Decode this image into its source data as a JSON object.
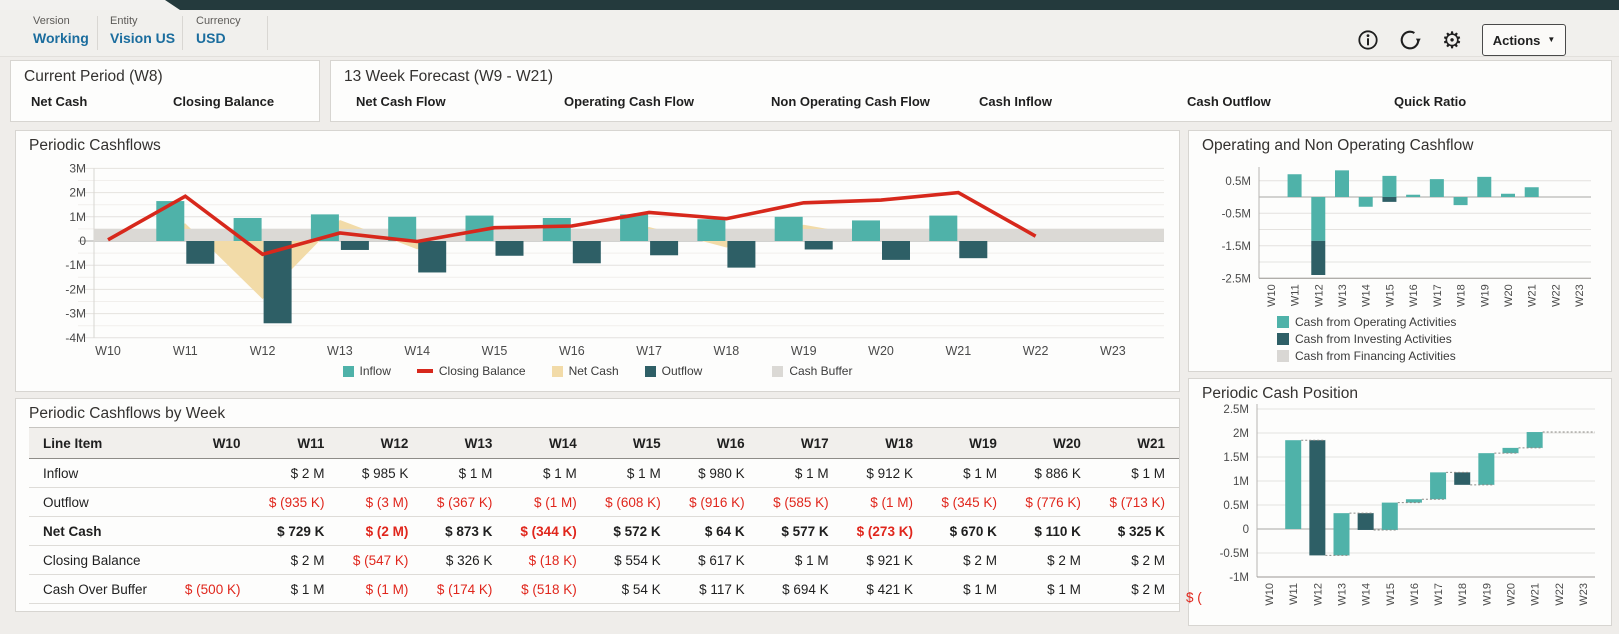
{
  "pov": {
    "items": [
      {
        "label": "Version",
        "value": "Working"
      },
      {
        "label": "Entity",
        "value": "Vision US"
      },
      {
        "label": "Currency",
        "value": "USD"
      }
    ]
  },
  "toolbar": {
    "icons": [
      "info-icon",
      "refresh-icon",
      "gear-icon"
    ],
    "actions_label": "Actions"
  },
  "summary": {
    "current_period": {
      "title": "Current Period (W8)",
      "metrics": [
        "Net Cash",
        "Closing Balance"
      ]
    },
    "forecast": {
      "title": "13 Week Forecast (W9 - W21)",
      "metrics": [
        "Net Cash Flow",
        "Operating Cash Flow",
        "Non Operating Cash Flow",
        "Cash Inflow",
        "Cash Outflow",
        "Quick Ratio"
      ]
    }
  },
  "colors": {
    "pov_link": "#1B6D9E",
    "negative_text": "#E0261C",
    "inflow_teal": "#4FB2A9",
    "outflow_dark_teal": "#2E5F66",
    "closing_balance_red": "#D7281C",
    "net_cash_tan": "#F2DBA8",
    "cash_buffer_gray": "#DBD9D5",
    "top_strip": "#243A3D"
  },
  "chart_data": [
    {
      "id": "periodic_cashflows",
      "type": "combo",
      "title": "Periodic Cashflows",
      "categories": [
        "W10",
        "W11",
        "W12",
        "W13",
        "W14",
        "W15",
        "W16",
        "W17",
        "W18",
        "W19",
        "W20",
        "W21",
        "W22",
        "W23"
      ],
      "ylim": [
        -4,
        3
      ],
      "y_ticks": [
        {
          "v": 3,
          "label": "3M"
        },
        {
          "v": 2,
          "label": "2M"
        },
        {
          "v": 1,
          "label": "1M"
        },
        {
          "v": 0,
          "label": "0"
        },
        {
          "v": -1,
          "label": "-1M"
        },
        {
          "v": -2,
          "label": "-2M"
        },
        {
          "v": -3,
          "label": "-3M"
        },
        {
          "v": -4,
          "label": "-4M"
        }
      ],
      "series": [
        {
          "name": "Net Cash",
          "type": "area",
          "color": "#F2DBA8",
          "values": [
            0,
            0.73,
            -2.4,
            0.87,
            -0.34,
            0.57,
            0.06,
            0.58,
            -0.27,
            0.67,
            0.11,
            0.33,
            null,
            null
          ]
        },
        {
          "name": "Cash Buffer",
          "type": "band",
          "color": "#DBD9D5",
          "low": 0,
          "high": 0.5
        },
        {
          "name": "Inflow",
          "type": "bar",
          "color": "#4FB2A9",
          "values": [
            null,
            1.65,
            0.95,
            1.1,
            1.0,
            1.05,
            0.95,
            1.1,
            0.9,
            1.0,
            0.85,
            1.05,
            null,
            null
          ]
        },
        {
          "name": "Outflow",
          "type": "bar",
          "color": "#2E5F66",
          "values": [
            null,
            -0.94,
            -3.4,
            -0.37,
            -1.3,
            -0.61,
            -0.92,
            -0.59,
            -1.1,
            -0.35,
            -0.78,
            -0.71,
            null,
            null
          ]
        },
        {
          "name": "Closing Balance",
          "type": "line",
          "color": "#D7281C",
          "values": [
            0.05,
            1.85,
            -0.55,
            0.33,
            -0.02,
            0.55,
            0.62,
            1.18,
            0.92,
            1.58,
            1.69,
            2.0,
            0.2,
            null
          ]
        }
      ],
      "legend": [
        "Inflow",
        "Closing Balance",
        "Net Cash",
        "Outflow",
        "Cash Buffer"
      ]
    },
    {
      "id": "op_nonop_cashflow",
      "type": "bar",
      "title": "Operating and Non Operating Cashflow",
      "categories": [
        "W10",
        "W11",
        "W12",
        "W13",
        "W14",
        "W15",
        "W16",
        "W17",
        "W18",
        "W19",
        "W20",
        "W21",
        "W22",
        "W23"
      ],
      "ylim": [
        -2.6,
        0.95
      ],
      "y_ticks": [
        {
          "v": 0.5,
          "label": "0.5M"
        },
        {
          "v": -0.5,
          "label": "-0.5M"
        },
        {
          "v": -1.5,
          "label": "-1.5M"
        },
        {
          "v": -2.5,
          "label": "-2.5M"
        }
      ],
      "stacked": true,
      "series": [
        {
          "name": "Cash from Operating Activities",
          "color": "#4FB2A9",
          "values": [
            0,
            0.7,
            -1.35,
            0.82,
            -0.3,
            0.65,
            0.07,
            0.55,
            -0.25,
            0.62,
            0.1,
            0.3,
            0,
            0
          ]
        },
        {
          "name": "Cash from Investing Activities",
          "color": "#2E5F66",
          "values": [
            0,
            0,
            -1.05,
            0,
            0,
            -0.15,
            0,
            0,
            0,
            0,
            0,
            0,
            0,
            0
          ]
        },
        {
          "name": "Cash from Financing Activities",
          "color": "#D9D7D4",
          "values": [
            0,
            0,
            0,
            0,
            0,
            0,
            0,
            0,
            0,
            0,
            0,
            0,
            0,
            0
          ]
        }
      ]
    },
    {
      "id": "periodic_cash_position",
      "type": "waterfall",
      "title": "Periodic Cash Position",
      "categories": [
        "W10",
        "W11",
        "W12",
        "W13",
        "W14",
        "W15",
        "W16",
        "W17",
        "W18",
        "W19",
        "W20",
        "W21",
        "W22",
        "W23"
      ],
      "ylim": [
        -1,
        2.5
      ],
      "y_ticks": [
        {
          "v": 2.5,
          "label": "2.5M"
        },
        {
          "v": 2,
          "label": "2M"
        },
        {
          "v": 1.5,
          "label": "1.5M"
        },
        {
          "v": 1,
          "label": "1M"
        },
        {
          "v": 0.5,
          "label": "0.5M"
        },
        {
          "v": 0,
          "label": "0"
        },
        {
          "v": -0.5,
          "label": "-0.5M"
        },
        {
          "v": -1,
          "label": "-1M"
        }
      ],
      "rise_color": "#4FB2A9",
      "fall_color": "#2E5F66",
      "from": [
        null,
        0,
        1.85,
        -0.55,
        0.33,
        -0.02,
        0.55,
        0.62,
        1.18,
        0.92,
        1.58,
        1.69,
        null,
        null
      ],
      "to": [
        null,
        1.85,
        -0.55,
        0.33,
        -0.02,
        0.55,
        0.62,
        1.18,
        0.92,
        1.58,
        1.69,
        2.02,
        null,
        null
      ]
    }
  ],
  "table": {
    "title": "Periodic Cashflows by Week",
    "columns": [
      "Line Item",
      "W10",
      "W11",
      "W12",
      "W13",
      "W14",
      "W15",
      "W16",
      "W17",
      "W18",
      "W19",
      "W20",
      "W21"
    ],
    "rows": [
      {
        "label": "Inflow",
        "bold": false,
        "values": [
          "",
          "$ 2 M",
          "$ 985 K",
          "$ 1 M",
          "$ 1 M",
          "$ 1 M",
          "$ 980 K",
          "$ 1 M",
          "$ 912 K",
          "$ 1 M",
          "$ 886 K",
          "$ 1 M"
        ]
      },
      {
        "label": "Outflow",
        "bold": false,
        "values": [
          "",
          "$ (935 K)",
          "$ (3 M)",
          "$ (367 K)",
          "$ (1 M)",
          "$ (608 K)",
          "$ (916 K)",
          "$ (585 K)",
          "$ (1 M)",
          "$ (345 K)",
          "$ (776 K)",
          "$ (713 K)"
        ]
      },
      {
        "label": "Net Cash",
        "bold": true,
        "values": [
          "",
          "$ 729 K",
          "$ (2 M)",
          "$ 873 K",
          "$ (344 K)",
          "$ 572 K",
          "$ 64 K",
          "$ 577 K",
          "$ (273 K)",
          "$ 670 K",
          "$ 110 K",
          "$ 325 K"
        ]
      },
      {
        "label": "Closing Balance",
        "bold": false,
        "values": [
          "",
          "$ 2 M",
          "$ (547 K)",
          "$ 326 K",
          "$ (18 K)",
          "$ 554 K",
          "$ 617 K",
          "$ 1 M",
          "$ 921 K",
          "$ 2 M",
          "$ 2 M",
          "$ 2 M"
        ]
      },
      {
        "label": "Cash Over Buffer",
        "bold": false,
        "values": [
          "$ (500 K)",
          "$ 1 M",
          "$ (1 M)",
          "$ (174 K)",
          "$ (518 K)",
          "$ 54 K",
          "$ 117 K",
          "$ 694 K",
          "$ 421 K",
          "$ 1 M",
          "$ 1 M",
          "$ 2 M"
        ]
      }
    ],
    "overflow_value": "$ ("
  }
}
